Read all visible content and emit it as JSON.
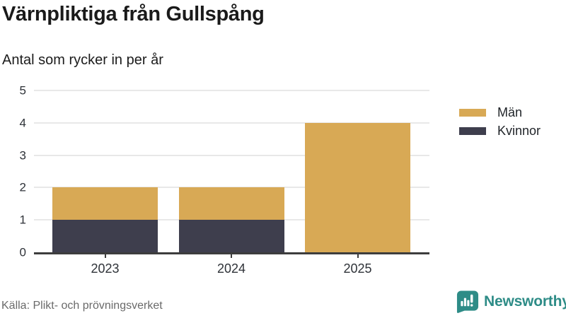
{
  "header": {
    "title": "Värnpliktiga från Gullspång",
    "subtitle": "Antal som rycker in per år"
  },
  "chart_data": {
    "type": "bar",
    "stacked": true,
    "title": "Värnpliktiga från Gullspång",
    "subtitle": "Antal som rycker in per år",
    "categories": [
      "2023",
      "2024",
      "2025"
    ],
    "series": [
      {
        "name": "Kvinnor",
        "color": "#3e3e4d",
        "values": [
          1,
          1,
          0
        ]
      },
      {
        "name": "Män",
        "color": "#d8a955",
        "values": [
          1,
          1,
          4
        ]
      }
    ],
    "totals": [
      2,
      2,
      4
    ],
    "xlabel": "",
    "ylabel": "",
    "ylim": [
      0,
      5
    ],
    "yticks": [
      0,
      1,
      2,
      3,
      4,
      5
    ],
    "grid": true,
    "legend_position": "right"
  },
  "legend": {
    "items": [
      {
        "label": "Män",
        "color": "#d8a955"
      },
      {
        "label": "Kvinnor",
        "color": "#3e3e4d"
      }
    ]
  },
  "footer": {
    "source": "Källa: Plikt- och prövningsverket",
    "brand": "Newsworthy"
  },
  "colors": {
    "bar_gold": "#d8a955",
    "bar_dark": "#3e3e4d",
    "brand_teal": "#2e8c87",
    "gridline": "#e8e8e8",
    "axis": "#3d3d3d",
    "title_text": "#1a1a1a",
    "muted_text": "#6a6a6a"
  }
}
